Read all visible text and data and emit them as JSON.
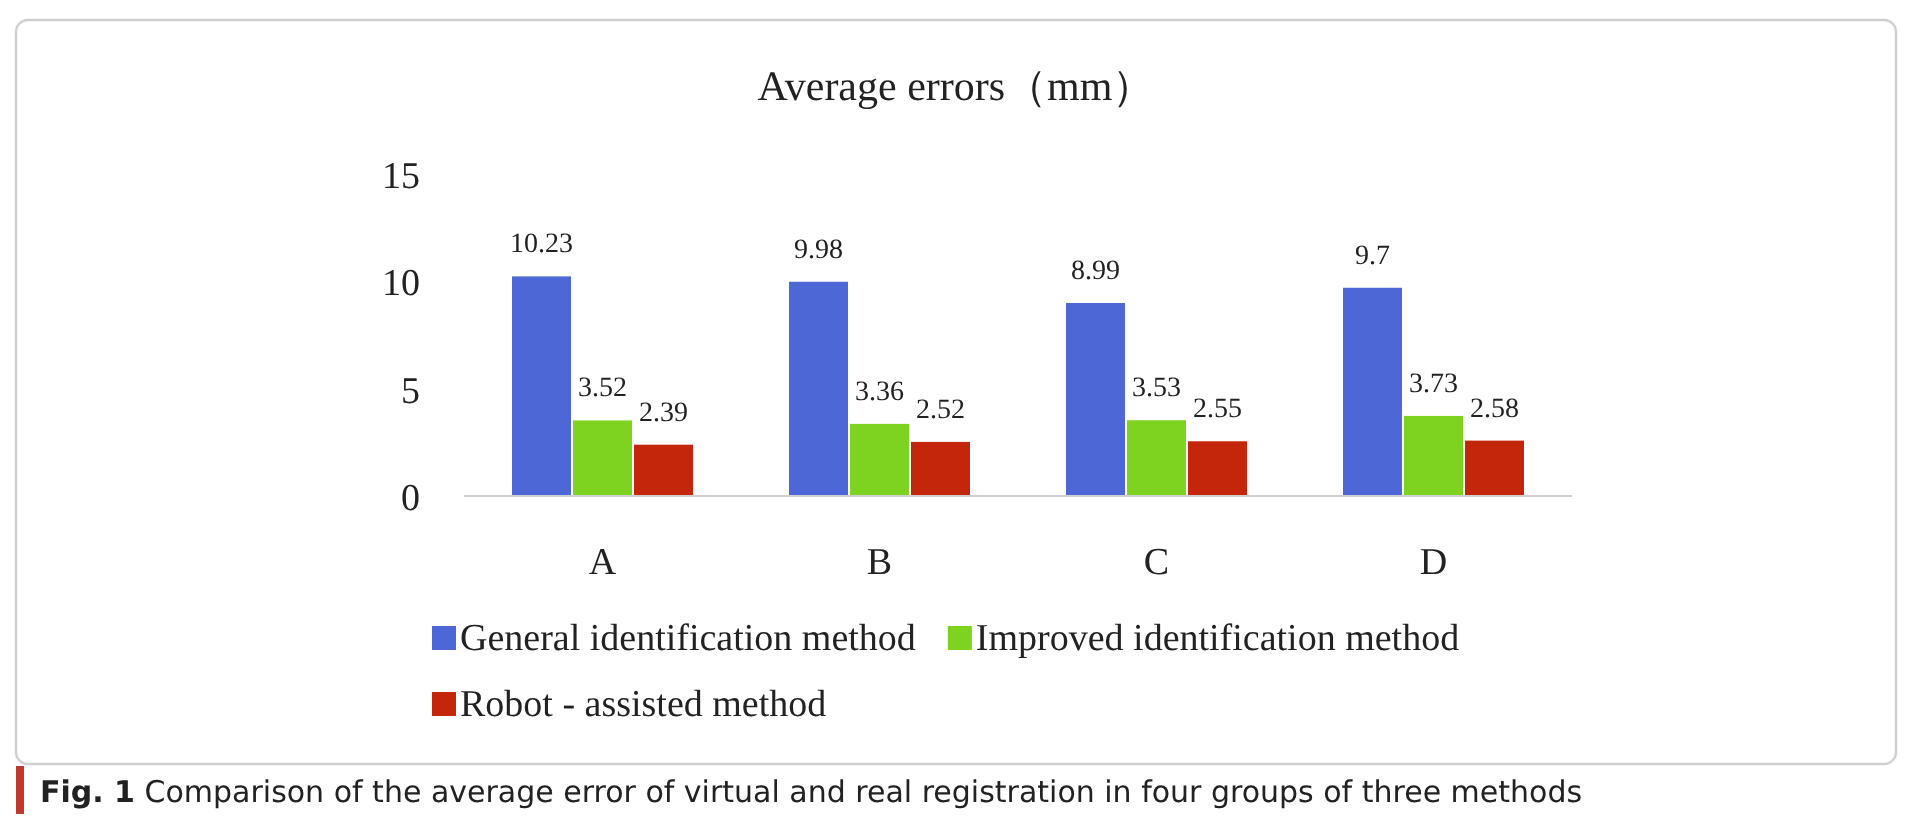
{
  "chart_data": {
    "type": "bar",
    "title": "Average errors（mm）",
    "categories": [
      "A",
      "B",
      "C",
      "D"
    ],
    "series": [
      {
        "name": "General identification method",
        "color": "#4e67d6",
        "values": [
          10.23,
          9.98,
          8.99,
          9.7
        ]
      },
      {
        "name": "Improved identification method",
        "color": "#7ed321",
        "values": [
          3.52,
          3.36,
          3.53,
          3.73
        ]
      },
      {
        "name": "Robot - assisted method",
        "color": "#c4260c",
        "values": [
          2.39,
          2.52,
          2.55,
          2.58
        ]
      }
    ],
    "ylim": [
      0,
      15
    ],
    "yticks": [
      0,
      5,
      10,
      15
    ],
    "data_labels": true,
    "grid": false,
    "legend": "bottom",
    "annotations": [
      "**Fig. 1**  Comparison of the average error of virtual and real registration in four groups of three methods"
    ]
  }
}
